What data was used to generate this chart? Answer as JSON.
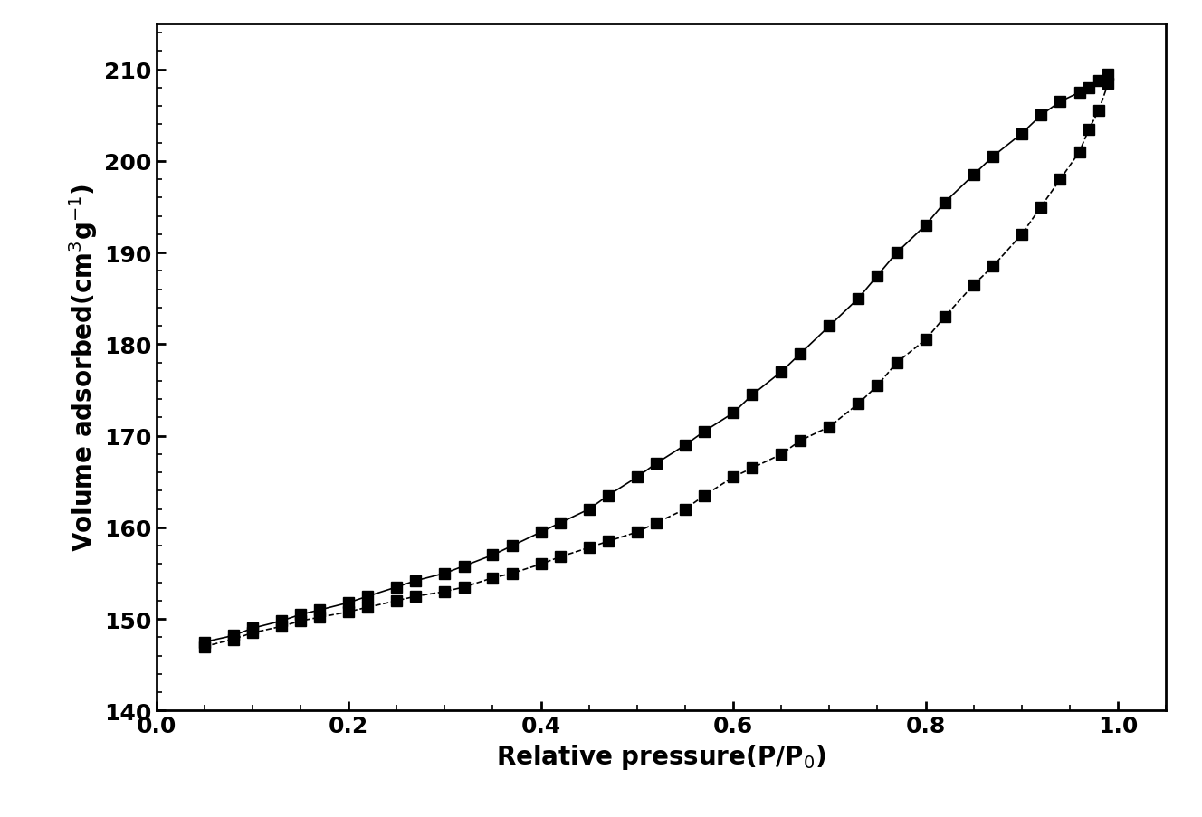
{
  "adsorption_x": [
    0.05,
    0.08,
    0.1,
    0.13,
    0.15,
    0.17,
    0.2,
    0.22,
    0.25,
    0.27,
    0.3,
    0.32,
    0.35,
    0.37,
    0.4,
    0.42,
    0.45,
    0.47,
    0.5,
    0.52,
    0.55,
    0.57,
    0.6,
    0.62,
    0.65,
    0.67,
    0.7,
    0.73,
    0.75,
    0.77,
    0.8,
    0.82,
    0.85,
    0.87,
    0.9,
    0.92,
    0.94,
    0.96,
    0.97,
    0.98,
    0.99
  ],
  "adsorption_y": [
    147.5,
    148.2,
    149.0,
    149.8,
    150.5,
    151.0,
    151.8,
    152.5,
    153.5,
    154.2,
    155.0,
    155.8,
    157.0,
    158.0,
    159.5,
    160.5,
    162.0,
    163.5,
    165.5,
    167.0,
    169.0,
    170.5,
    172.5,
    174.5,
    177.0,
    179.0,
    182.0,
    185.0,
    187.5,
    190.0,
    193.0,
    195.5,
    198.5,
    200.5,
    203.0,
    205.0,
    206.5,
    207.5,
    208.0,
    208.8,
    209.5
  ],
  "desorption_x": [
    0.05,
    0.08,
    0.1,
    0.13,
    0.15,
    0.17,
    0.2,
    0.22,
    0.25,
    0.27,
    0.3,
    0.32,
    0.35,
    0.37,
    0.4,
    0.42,
    0.45,
    0.47,
    0.5,
    0.52,
    0.55,
    0.57,
    0.6,
    0.62,
    0.65,
    0.67,
    0.7,
    0.73,
    0.75,
    0.77,
    0.8,
    0.82,
    0.85,
    0.87,
    0.9,
    0.92,
    0.94,
    0.96,
    0.97,
    0.98,
    0.99
  ],
  "desorption_y": [
    147.0,
    147.8,
    148.5,
    149.2,
    149.8,
    150.2,
    150.8,
    151.3,
    152.0,
    152.5,
    153.0,
    153.5,
    154.5,
    155.0,
    156.0,
    156.8,
    157.8,
    158.5,
    159.5,
    160.5,
    162.0,
    163.5,
    165.5,
    166.5,
    168.0,
    169.5,
    171.0,
    173.5,
    175.5,
    178.0,
    180.5,
    183.0,
    186.5,
    188.5,
    192.0,
    195.0,
    198.0,
    201.0,
    203.5,
    205.5,
    208.5
  ],
  "xlabel": "Relative pressure(P/P$_0$)",
  "ylabel": "Volume adsorbed(cm$^3$g$^{-1}$)",
  "xlim": [
    0.0,
    1.05
  ],
  "ylim": [
    140,
    215
  ],
  "yticks": [
    140,
    150,
    160,
    170,
    180,
    190,
    200,
    210
  ],
  "xticks": [
    0.0,
    0.2,
    0.4,
    0.6,
    0.8,
    1.0
  ],
  "marker_color": "#000000",
  "bg_color": "#ffffff",
  "marker_size": 9,
  "linewidth": 1.2,
  "xlabel_fontsize": 20,
  "ylabel_fontsize": 20,
  "tick_fontsize": 18,
  "tick_fontweight": "bold",
  "label_fontweight": "bold"
}
